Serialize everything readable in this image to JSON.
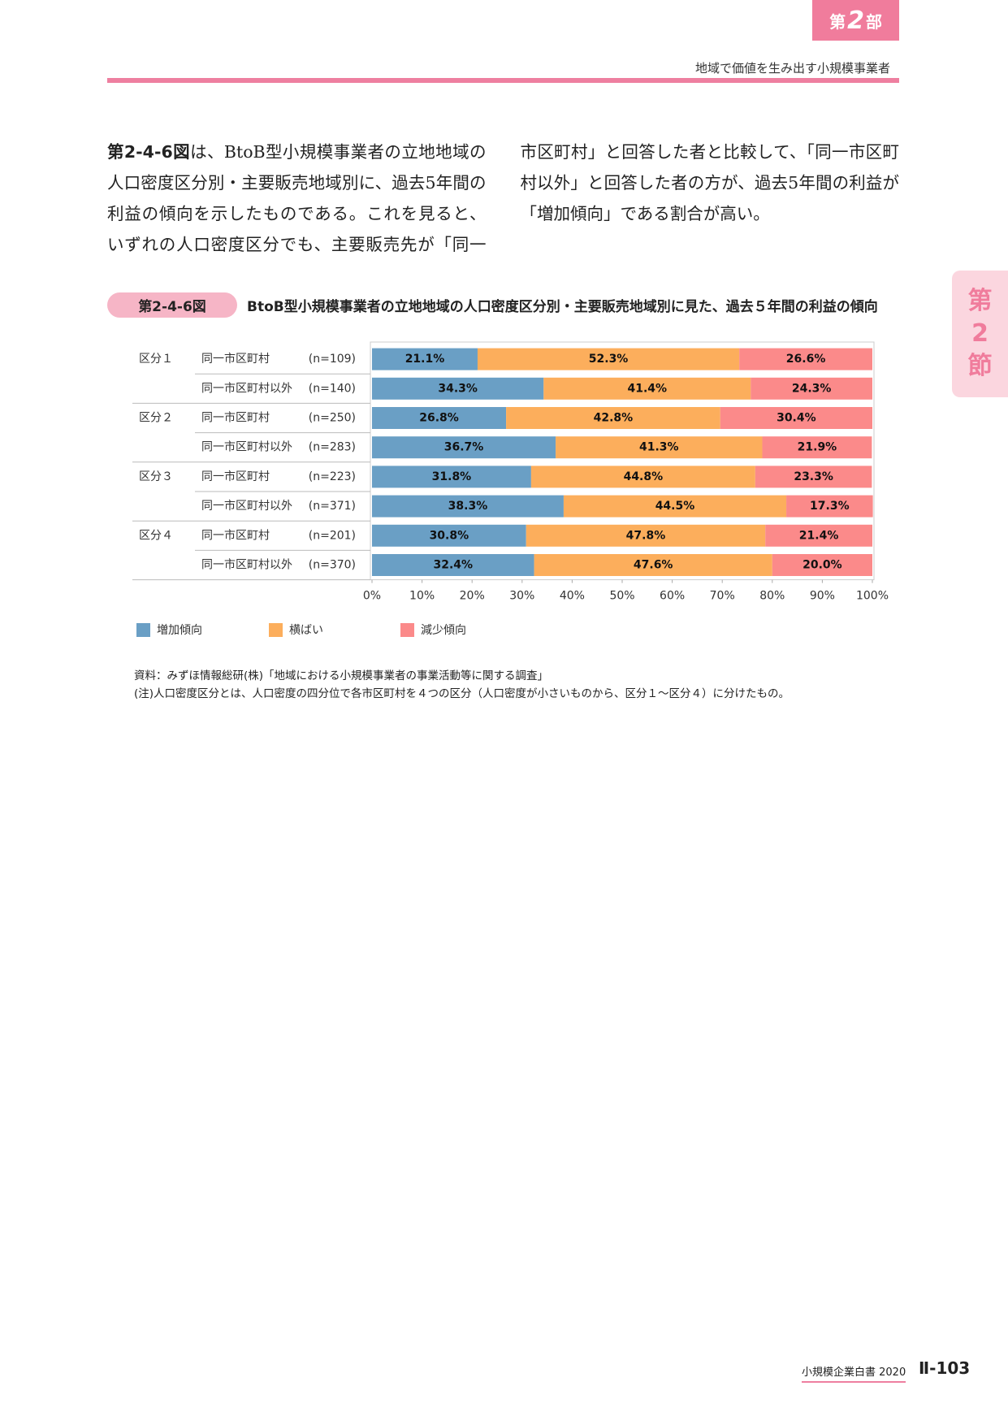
{
  "header": {
    "part": {
      "prefix": "第",
      "number": "2",
      "suffix": "部"
    },
    "subtitle": "地域で価値を生み出す小規模事業者"
  },
  "side_tab": [
    "第",
    "2",
    "節"
  ],
  "body": {
    "ref": "第2-4-6図",
    "text": "は、BtoB型小規模事業者の立地地域の人口密度区分別・主要販売地域別に、過去5年間の利益の傾向を示したものである。これを見ると、いずれの人口密度区分でも、主要販売先が「同一市区町村」と回答した者と比較して、「同一市区町村以外」と回答した者の方が、過去5年間の利益が「増加傾向」である割合が高い。"
  },
  "figure": {
    "label": "第2-4-6図",
    "title": "BtoB型小規模事業者の立地地域の人口密度区分別・主要販売地域別に見た、過去５年間の利益の傾向"
  },
  "chart_data": {
    "type": "stacked_bar_horizontal",
    "row_groups": [
      "区分１",
      null,
      "区分２",
      null,
      "区分３",
      null,
      "区分４",
      null
    ],
    "categories": [
      "同一市区町村",
      "同一市区町村以外",
      "同一市区町村",
      "同一市区町村以外",
      "同一市区町村",
      "同一市区町村以外",
      "同一市区町村",
      "同一市区町村以外"
    ],
    "sample_sizes": [
      "(n=109)",
      "(n=140)",
      "(n=250)",
      "(n=283)",
      "(n=223)",
      "(n=371)",
      "(n=201)",
      "(n=370)"
    ],
    "series": [
      {
        "name": "増加傾向",
        "color": "#6a9fc5",
        "values": [
          21.1,
          34.3,
          26.8,
          36.7,
          31.8,
          38.3,
          30.8,
          32.4
        ],
        "value_labels": [
          "21.1%",
          "34.3%",
          "26.8%",
          "36.7%",
          "31.8%",
          "38.3%",
          "30.8%",
          "32.4%"
        ]
      },
      {
        "name": "横ばい",
        "color": "#fcae5c",
        "values": [
          52.3,
          41.4,
          42.8,
          41.3,
          44.8,
          44.5,
          47.8,
          47.6
        ],
        "value_labels": [
          "52.3%",
          "41.4%",
          "42.8%",
          "41.3%",
          "44.8%",
          "44.5%",
          "47.8%",
          "47.6%"
        ]
      },
      {
        "name": "減少傾向",
        "color": "#fb8a8a",
        "values": [
          26.6,
          24.3,
          30.4,
          21.9,
          23.3,
          17.3,
          21.4,
          20.0
        ],
        "value_labels": [
          "26.6%",
          "24.3%",
          "30.4%",
          "21.9%",
          "23.3%",
          "17.3%",
          "21.4%",
          "20.0%"
        ]
      }
    ],
    "xlim": [
      0,
      100
    ],
    "xticks": [
      {
        "value": 0,
        "label": "0%"
      },
      {
        "value": 10,
        "label": "10%"
      },
      {
        "value": 20,
        "label": "20%"
      },
      {
        "value": 30,
        "label": "30%"
      },
      {
        "value": 40,
        "label": "40%"
      },
      {
        "value": 50,
        "label": "50%"
      },
      {
        "value": 60,
        "label": "60%"
      },
      {
        "value": 70,
        "label": "70%"
      },
      {
        "value": 80,
        "label": "80%"
      },
      {
        "value": 90,
        "label": "90%"
      },
      {
        "value": 100,
        "label": "100%"
      }
    ]
  },
  "notes": [
    "資料：みずほ情報総研(株)「地域における小規模事業者の事業活動等に関する調査」",
    "(注)人口密度区分とは、人口密度の四分位で各市区町村を４つの区分（人口密度が小さいものから、区分１～区分４）に分けたもの。"
  ],
  "footer": {
    "book": "小規模企業白書 2020",
    "page": "Ⅱ-103"
  }
}
